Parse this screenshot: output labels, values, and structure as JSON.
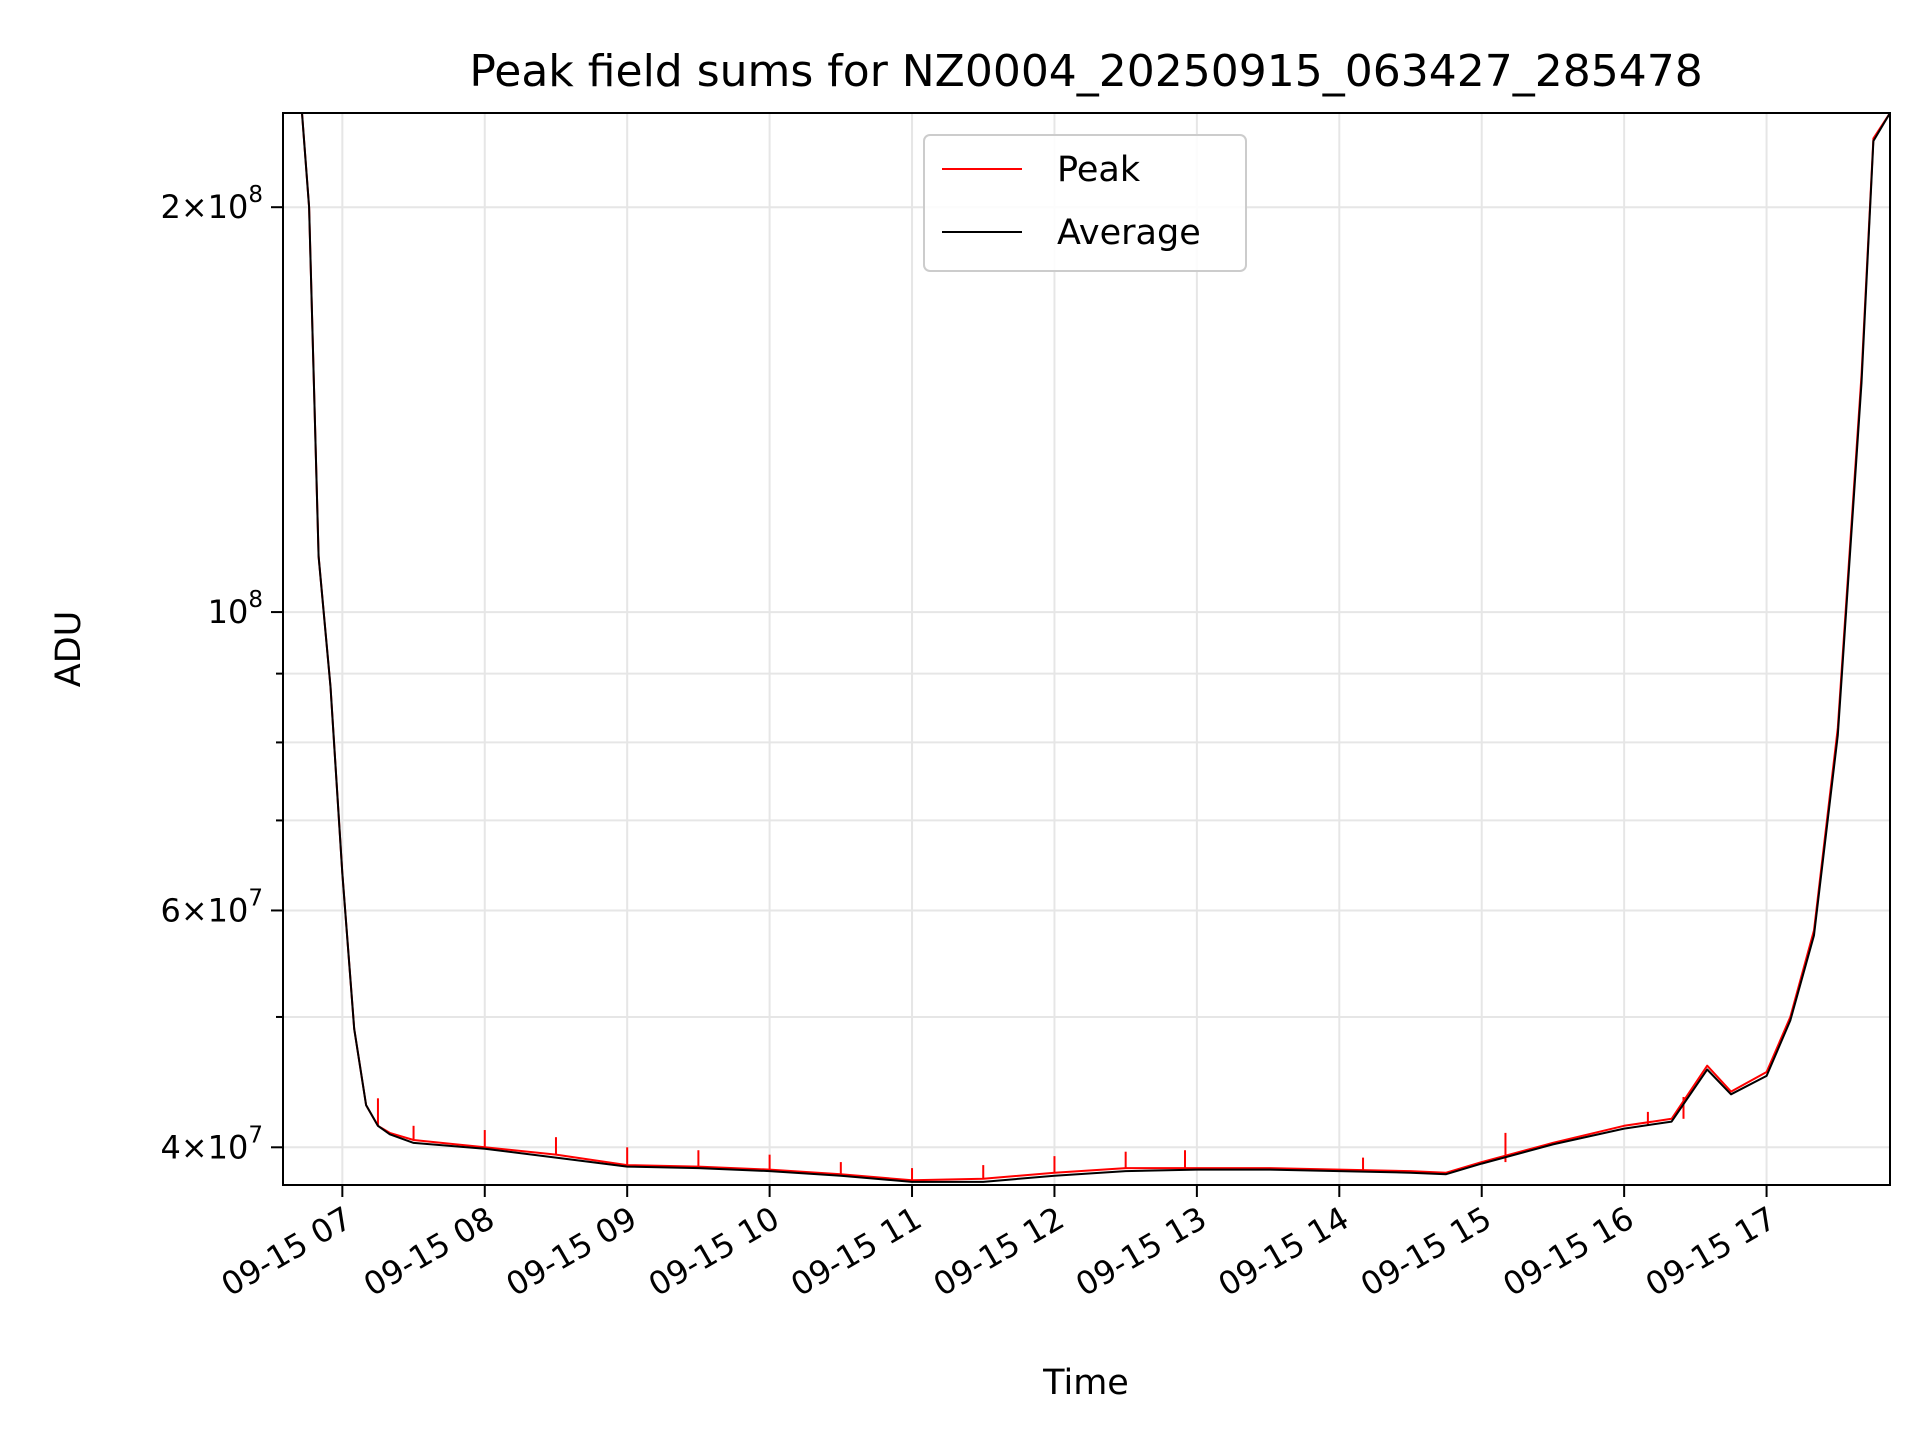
{
  "chart_data": {
    "type": "line",
    "title": "Peak field sums for NZ0004_20250915_063427_285478",
    "xlabel": "Time",
    "ylabel": "ADU",
    "yscale": "log",
    "grid": true,
    "legend_position": "top-center",
    "x_range": [
      "09-15 06:35",
      "09-15 17:52"
    ],
    "y_range": [
      37500000,
      235000000
    ],
    "x_ticks": [
      "09-15 07",
      "09-15 08",
      "09-15 09",
      "09-15 10",
      "09-15 11",
      "09-15 12",
      "09-15 13",
      "09-15 14",
      "09-15 15",
      "09-15 16",
      "09-15 17"
    ],
    "y_ticks": [
      {
        "value": 40000000,
        "mantissa": "4",
        "exponent": "7"
      },
      {
        "value": 60000000,
        "mantissa": "6",
        "exponent": "7"
      },
      {
        "value": 100000000,
        "mantissa": "",
        "exponent": "8"
      },
      {
        "value": 200000000,
        "mantissa": "2",
        "exponent": "8"
      }
    ],
    "y_minor_ticks": [
      50000000,
      70000000,
      80000000,
      90000000
    ],
    "series": [
      {
        "name": "Peak",
        "color": "#ff0000",
        "x": [
          "09-15 06:35",
          "09-15 06:43",
          "09-15 06:46",
          "09-15 06:50",
          "09-15 06:55",
          "09-15 07:00",
          "09-15 07:05",
          "09-15 07:10",
          "09-15 07:15",
          "09-15 07:20",
          "09-15 07:30",
          "09-15 08:00",
          "09-15 08:30",
          "09-15 09:00",
          "09-15 09:30",
          "09-15 10:00",
          "09-15 10:30",
          "09-15 11:00",
          "09-15 11:30",
          "09-15 12:00",
          "09-15 12:30",
          "09-15 13:00",
          "09-15 13:30",
          "09-15 14:00",
          "09-15 14:30",
          "09-15 14:45",
          "09-15 15:00",
          "09-15 15:30",
          "09-15 16:00",
          "09-15 16:20",
          "09-15 16:35",
          "09-15 16:45",
          "09-15 17:00",
          "09-15 17:10",
          "09-15 17:20",
          "09-15 17:30",
          "09-15 17:40",
          "09-15 17:45",
          "09-15 17:52"
        ],
        "values": [
          235000000,
          235000000,
          200000000,
          110000000,
          88000000,
          64000000,
          49000000,
          43000000,
          41500000,
          41000000,
          40500000,
          40000000,
          39500000,
          38800000,
          38700000,
          38500000,
          38200000,
          37800000,
          37900000,
          38300000,
          38600000,
          38600000,
          38600000,
          38500000,
          38400000,
          38300000,
          39000000,
          40300000,
          41500000,
          42000000,
          46000000,
          44000000,
          45500000,
          50000000,
          58000000,
          82000000,
          150000000,
          225000000,
          235000000
        ],
        "spikes": [
          {
            "x": "09-15 07:15",
            "value": 43500000
          },
          {
            "x": "09-15 07:30",
            "value": 41500000
          },
          {
            "x": "09-15 08:00",
            "value": 41200000
          },
          {
            "x": "09-15 08:30",
            "value": 40700000
          },
          {
            "x": "09-15 09:00",
            "value": 40000000
          },
          {
            "x": "09-15 09:30",
            "value": 39800000
          },
          {
            "x": "09-15 10:00",
            "value": 39500000
          },
          {
            "x": "09-15 10:30",
            "value": 39000000
          },
          {
            "x": "09-15 11:00",
            "value": 38600000
          },
          {
            "x": "09-15 11:30",
            "value": 38800000
          },
          {
            "x": "09-15 12:00",
            "value": 39400000
          },
          {
            "x": "09-15 12:30",
            "value": 39700000
          },
          {
            "x": "09-15 12:55",
            "value": 39800000
          },
          {
            "x": "09-15 14:10",
            "value": 39300000
          },
          {
            "x": "09-15 15:10",
            "value": 41000000
          },
          {
            "x": "09-15 16:10",
            "value": 42500000
          },
          {
            "x": "09-15 16:25",
            "value": 43600000
          }
        ]
      },
      {
        "name": "Average",
        "color": "#000000",
        "x": [
          "09-15 06:35",
          "09-15 06:43",
          "09-15 06:46",
          "09-15 06:50",
          "09-15 06:55",
          "09-15 07:00",
          "09-15 07:05",
          "09-15 07:10",
          "09-15 07:15",
          "09-15 07:20",
          "09-15 07:30",
          "09-15 08:00",
          "09-15 08:30",
          "09-15 09:00",
          "09-15 09:30",
          "09-15 10:00",
          "09-15 10:30",
          "09-15 11:00",
          "09-15 11:30",
          "09-15 12:00",
          "09-15 12:30",
          "09-15 13:00",
          "09-15 13:30",
          "09-15 14:00",
          "09-15 14:30",
          "09-15 14:45",
          "09-15 15:00",
          "09-15 15:30",
          "09-15 16:00",
          "09-15 16:20",
          "09-15 16:35",
          "09-15 16:45",
          "09-15 17:00",
          "09-15 17:10",
          "09-15 17:20",
          "09-15 17:30",
          "09-15 17:40",
          "09-15 17:45",
          "09-15 17:52"
        ],
        "values": [
          235000000,
          235000000,
          200000000,
          110000000,
          88000000,
          64000000,
          49000000,
          43000000,
          41500000,
          40900000,
          40300000,
          39900000,
          39300000,
          38700000,
          38600000,
          38400000,
          38100000,
          37700000,
          37700000,
          38100000,
          38400000,
          38500000,
          38500000,
          38400000,
          38300000,
          38200000,
          38900000,
          40200000,
          41300000,
          41800000,
          45700000,
          43800000,
          45200000,
          49700000,
          57500000,
          81000000,
          148000000,
          224000000,
          235000000
        ]
      }
    ]
  }
}
